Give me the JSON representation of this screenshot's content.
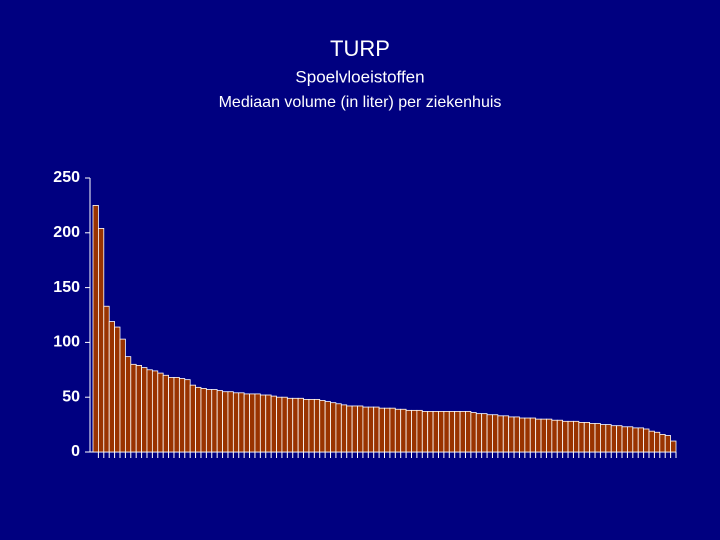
{
  "chart_data": {
    "type": "bar",
    "title": "TURP",
    "subtitle": "Spoelvloeistoffen",
    "y_label": "Mediaan volume (in liter) per ziekenhuis",
    "categories": [
      null,
      null,
      null,
      null,
      null,
      null,
      null,
      null,
      null,
      null,
      null,
      null,
      null,
      null,
      null,
      null,
      null,
      null,
      null,
      null,
      null,
      null,
      null,
      null,
      null,
      null,
      null,
      null,
      null,
      null,
      null,
      null,
      null,
      null,
      null,
      null,
      null,
      null,
      null,
      null,
      null,
      null,
      null,
      null,
      null,
      null,
      null,
      null,
      null,
      null,
      null,
      null,
      null,
      null,
      null,
      null,
      null,
      null,
      null,
      null,
      null,
      null,
      null,
      null,
      null,
      null,
      null,
      null,
      null,
      null,
      null,
      null,
      null,
      null,
      null,
      null,
      null,
      null,
      null,
      null,
      null,
      null,
      null,
      null,
      null,
      null,
      null,
      null,
      null,
      null,
      null,
      null,
      null,
      null,
      null,
      null,
      null,
      null,
      null,
      null,
      null,
      null,
      null,
      null,
      null,
      null,
      null,
      null
    ],
    "values": [
      225,
      204,
      133,
      119,
      114,
      103,
      87,
      80,
      79,
      77,
      75,
      74,
      72,
      70,
      68,
      68,
      67,
      66,
      61,
      59,
      58,
      57,
      57,
      56,
      55,
      55,
      54,
      54,
      53,
      53,
      53,
      52,
      52,
      51,
      50,
      50,
      49,
      49,
      49,
      48,
      48,
      48,
      47,
      46,
      45,
      44,
      43,
      42,
      42,
      42,
      41,
      41,
      41,
      40,
      40,
      40,
      39,
      39,
      38,
      38,
      38,
      37,
      37,
      37,
      37,
      37,
      37,
      37,
      37,
      37,
      36,
      35,
      35,
      34,
      34,
      33,
      33,
      32,
      32,
      31,
      31,
      31,
      30,
      30,
      30,
      29,
      29,
      28,
      28,
      28,
      27,
      27,
      26,
      26,
      25,
      25,
      24,
      24,
      23,
      23,
      22,
      22,
      21,
      19,
      18,
      16,
      15,
      10
    ],
    "color": "#993300",
    "ylim": [
      0,
      250
    ],
    "yticks": [
      0,
      50,
      100,
      150,
      200,
      250
    ],
    "grid": false
  }
}
